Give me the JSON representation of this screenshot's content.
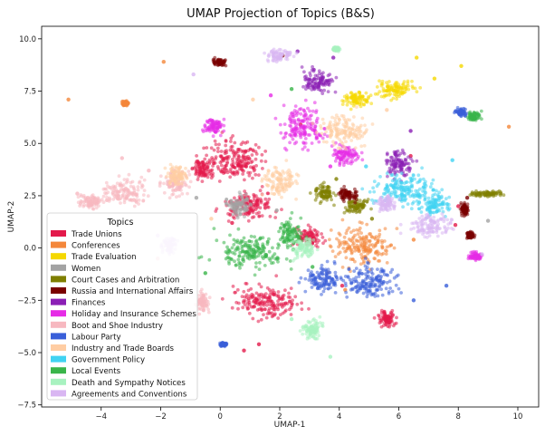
{
  "chart_data": {
    "type": "scatter",
    "title": "UMAP Projection of Topics (B&S)",
    "xlabel": "UMAP-1",
    "ylabel": "UMAP-2",
    "xlim": [
      -6.0,
      10.7
    ],
    "ylim": [
      -7.6,
      10.6
    ],
    "xticks": [
      -4,
      -2,
      0,
      2,
      4,
      6,
      8,
      10
    ],
    "yticks": [
      -7.5,
      -5.0,
      -2.5,
      0.0,
      2.5,
      5.0,
      7.5,
      10.0
    ],
    "xtick_labels": [
      "−4",
      "−2",
      "0",
      "2",
      "4",
      "6",
      "8",
      "10"
    ],
    "ytick_labels": [
      "−7.5",
      "−5.0",
      "−2.5",
      "0.0",
      "2.5",
      "5.0",
      "7.5",
      "10.0"
    ],
    "grid": false,
    "legend": {
      "title": "Topics",
      "placement": "lower-left"
    },
    "series": [
      {
        "name": "Trade Unions",
        "color": "#e31a4b",
        "clusters": [
          [
            0.5,
            4.2,
            0.9,
            0.9
          ],
          [
            1.5,
            -2.5,
            1.0,
            0.7
          ],
          [
            3.0,
            0.5,
            0.4,
            0.4
          ],
          [
            5.6,
            -3.4,
            0.3,
            0.3
          ],
          [
            1.0,
            2.0,
            0.8,
            0.6
          ],
          [
            -0.6,
            3.8,
            0.3,
            0.4
          ]
        ],
        "points": [
          [
            0.8,
            -4.9
          ],
          [
            1.3,
            -4.6
          ],
          [
            8.0,
            2.0
          ],
          [
            7.9,
            1.1
          ],
          [
            0.4,
            1.2
          ],
          [
            6.4,
            4.4
          ],
          [
            2.7,
            5.9
          ],
          [
            4.1,
            -1.8
          ]
        ]
      },
      {
        "name": "Conferences",
        "color": "#f4873a",
        "clusters": [
          [
            4.8,
            0.1,
            0.9,
            0.8
          ],
          [
            -3.2,
            6.9,
            0.1,
            0.1
          ]
        ],
        "points": [
          [
            -1.9,
            8.9
          ],
          [
            -5.1,
            7.1
          ],
          [
            6.5,
            0.4
          ],
          [
            4.2,
            -2.0
          ],
          [
            9.7,
            5.8
          ]
        ]
      },
      {
        "name": "Trade Evaluation",
        "color": "#f5d800",
        "clusters": [
          [
            5.9,
            7.6,
            0.55,
            0.4
          ],
          [
            4.6,
            7.1,
            0.4,
            0.3
          ]
        ],
        "points": [
          [
            7.2,
            8.1
          ],
          [
            6.6,
            9.1
          ],
          [
            8.1,
            8.7
          ]
        ]
      },
      {
        "name": "Women",
        "color": "#a3a3a3",
        "clusters": [
          [
            0.6,
            2.0,
            0.35,
            0.45
          ]
        ],
        "points": [
          [
            9.0,
            1.3
          ],
          [
            -0.8,
            2.4
          ],
          [
            1.9,
            1.8
          ]
        ]
      },
      {
        "name": "Court Cases and Arbitration",
        "color": "#7f7f00",
        "clusters": [
          [
            3.5,
            2.6,
            0.3,
            0.35
          ],
          [
            9.0,
            2.6,
            0.5,
            0.1
          ],
          [
            4.6,
            2.0,
            0.3,
            0.3
          ]
        ],
        "points": [
          [
            3.9,
            3.3
          ],
          [
            5.1,
            1.4
          ]
        ]
      },
      {
        "name": "Russia and International Affairs",
        "color": "#7a0000",
        "clusters": [
          [
            0.0,
            8.9,
            0.2,
            0.15
          ],
          [
            8.2,
            1.8,
            0.12,
            0.25
          ],
          [
            8.4,
            0.6,
            0.12,
            0.15
          ],
          [
            4.3,
            2.6,
            0.3,
            0.3
          ]
        ],
        "points": [
          [
            2.1,
            9.2
          ],
          [
            8.3,
            2.4
          ]
        ]
      },
      {
        "name": "Finances",
        "color": "#8b1fb5",
        "clusters": [
          [
            3.3,
            8.0,
            0.5,
            0.5
          ],
          [
            6.0,
            4.0,
            0.4,
            0.6
          ]
        ],
        "points": [
          [
            3.8,
            9.1
          ],
          [
            2.6,
            9.4
          ],
          [
            6.4,
            5.6
          ]
        ]
      },
      {
        "name": "Holiday and Insurance Schemes",
        "color": "#e62ce6",
        "clusters": [
          [
            2.8,
            5.8,
            0.65,
            0.9
          ],
          [
            -0.2,
            5.8,
            0.3,
            0.3
          ],
          [
            8.6,
            -0.4,
            0.2,
            0.15
          ],
          [
            4.2,
            4.4,
            0.4,
            0.4
          ]
        ],
        "points": [
          [
            1.7,
            7.3
          ],
          [
            3.7,
            3.9
          ]
        ]
      },
      {
        "name": "Boot and Shoe Industry",
        "color": "#f7b8c0",
        "clusters": [
          [
            -3.2,
            2.7,
            0.7,
            0.55
          ],
          [
            -4.3,
            2.2,
            0.4,
            0.25
          ],
          [
            -1.5,
            3.1,
            0.4,
            0.5
          ],
          [
            -0.6,
            -2.6,
            0.2,
            0.4
          ]
        ],
        "points": [
          [
            -2.1,
            -0.5
          ],
          [
            -4.8,
            2.6
          ],
          [
            -3.3,
            4.3
          ],
          [
            -2.4,
            3.7
          ]
        ]
      },
      {
        "name": "Labour Party",
        "color": "#3a5fd9",
        "clusters": [
          [
            5.0,
            -1.6,
            0.85,
            0.7
          ],
          [
            3.4,
            -1.4,
            0.5,
            0.6
          ],
          [
            8.1,
            6.5,
            0.2,
            0.15
          ],
          [
            0.1,
            -4.6,
            0.1,
            0.08
          ]
        ],
        "points": [
          [
            6.5,
            -2.5
          ],
          [
            7.6,
            -1.8
          ]
        ]
      },
      {
        "name": "Industry and Trade Boards",
        "color": "#ffcda3",
        "clusters": [
          [
            4.2,
            5.6,
            0.7,
            0.7
          ],
          [
            2.0,
            3.2,
            0.5,
            0.6
          ],
          [
            -1.5,
            3.5,
            0.3,
            0.4
          ]
        ],
        "points": [
          [
            1.1,
            7.1
          ],
          [
            5.6,
            6.6
          ],
          [
            -0.3,
            1.4
          ]
        ]
      },
      {
        "name": "Government Policy",
        "color": "#41d3f2",
        "clusters": [
          [
            6.1,
            2.8,
            1.0,
            0.75
          ],
          [
            7.2,
            2.1,
            0.4,
            0.5
          ]
        ],
        "points": [
          [
            7.8,
            4.2
          ],
          [
            4.9,
            3.9
          ]
        ]
      },
      {
        "name": "Local Events",
        "color": "#39b54a",
        "clusters": [
          [
            1.0,
            -0.2,
            1.0,
            0.7
          ],
          [
            2.4,
            0.7,
            0.4,
            0.6
          ],
          [
            8.5,
            6.3,
            0.18,
            0.18
          ]
        ],
        "points": [
          [
            -0.5,
            -1.2
          ],
          [
            3.1,
            -0.9
          ],
          [
            2.4,
            7.6
          ]
        ]
      },
      {
        "name": "Death and Sympathy Notices",
        "color": "#a8f2c0",
        "clusters": [
          [
            3.1,
            -3.9,
            0.3,
            0.5
          ],
          [
            2.8,
            0.0,
            0.3,
            0.5
          ],
          [
            3.9,
            9.5,
            0.1,
            0.1
          ]
        ],
        "points": [
          [
            3.7,
            -5.2
          ],
          [
            2.4,
            -3.4
          ]
        ]
      },
      {
        "name": "Agreements and Conventions",
        "color": "#d9b6f2",
        "clusters": [
          [
            7.1,
            1.1,
            0.65,
            0.45
          ],
          [
            2.0,
            9.2,
            0.35,
            0.25
          ],
          [
            -1.7,
            0.1,
            0.2,
            0.3
          ],
          [
            5.6,
            2.1,
            0.3,
            0.3
          ]
        ],
        "points": [
          [
            8.8,
            -0.3
          ],
          [
            -2.1,
            0.6
          ],
          [
            -0.9,
            8.3
          ]
        ]
      }
    ]
  }
}
